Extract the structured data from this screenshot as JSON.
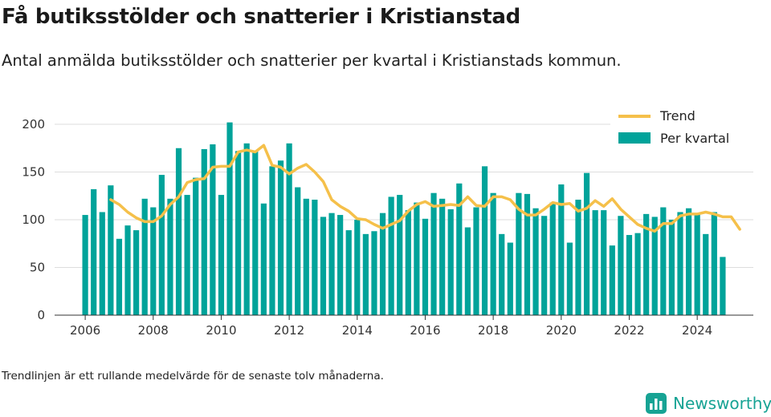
{
  "title": "Få butiksstölder och snatterier i Kristianstad",
  "subtitle": "Antal anmälda butiksstölder och snatterier per kvartal i Kristianstads kommun.",
  "footnote": "Trendlinjen är ett rullande medelvärde för de senaste tolv månaderna.",
  "brand": {
    "name": "Newsworthy",
    "icon": "bar-chart-logo-icon"
  },
  "colors": {
    "bars": "#00a39a",
    "trend": "#f5c04a",
    "grid": "#dddddd",
    "brand": "#17a394"
  },
  "chart_data": {
    "type": "bar",
    "x_start": 2006.0,
    "x_step": 0.25,
    "x_ticks": [
      "2006",
      "2008",
      "2010",
      "2012",
      "2014",
      "2016",
      "2018",
      "2020",
      "2022",
      "2024"
    ],
    "y_ticks": [
      "0",
      "50",
      "100",
      "150",
      "200"
    ],
    "ylim": [
      0,
      200
    ],
    "xlim": [
      2005.1,
      2025.65
    ],
    "grid": true,
    "legend_position": "top-right",
    "series": [
      {
        "name": "Per kvartal",
        "type": "bar",
        "values": [
          105,
          132,
          108,
          136,
          80,
          94,
          89,
          122,
          113,
          147,
          122,
          175,
          126,
          144,
          174,
          179,
          126,
          202,
          172,
          180,
          172,
          117,
          156,
          162,
          180,
          134,
          122,
          121,
          103,
          107,
          105,
          89,
          100,
          85,
          88,
          107,
          124,
          126,
          110,
          118,
          101,
          128,
          122,
          111,
          138,
          92,
          113,
          156,
          128,
          85,
          76,
          128,
          127,
          112,
          104,
          118,
          137,
          76,
          121,
          149,
          110,
          110,
          73,
          104,
          84,
          86,
          106,
          103,
          113,
          100,
          108,
          112,
          107,
          85,
          108,
          61
        ]
      },
      {
        "name": "Trend",
        "type": "line",
        "start_index": 3,
        "values": [
          121,
          116,
          108,
          102,
          98,
          98,
          104,
          116,
          124,
          139,
          142,
          143,
          155,
          156,
          156,
          171,
          173,
          171,
          178,
          157,
          155,
          148,
          154,
          158,
          150,
          140,
          121,
          114,
          109,
          101,
          100,
          95,
          91,
          95,
          99,
          109,
          116,
          119,
          114,
          115,
          116,
          115,
          124,
          115,
          114,
          124,
          124,
          121,
          111,
          105,
          105,
          111,
          118,
          116,
          117,
          109,
          112,
          120,
          114,
          122,
          111,
          103,
          95,
          91,
          88,
          96,
          96,
          104,
          106,
          106,
          108,
          106,
          103,
          103,
          90
        ]
      }
    ]
  }
}
